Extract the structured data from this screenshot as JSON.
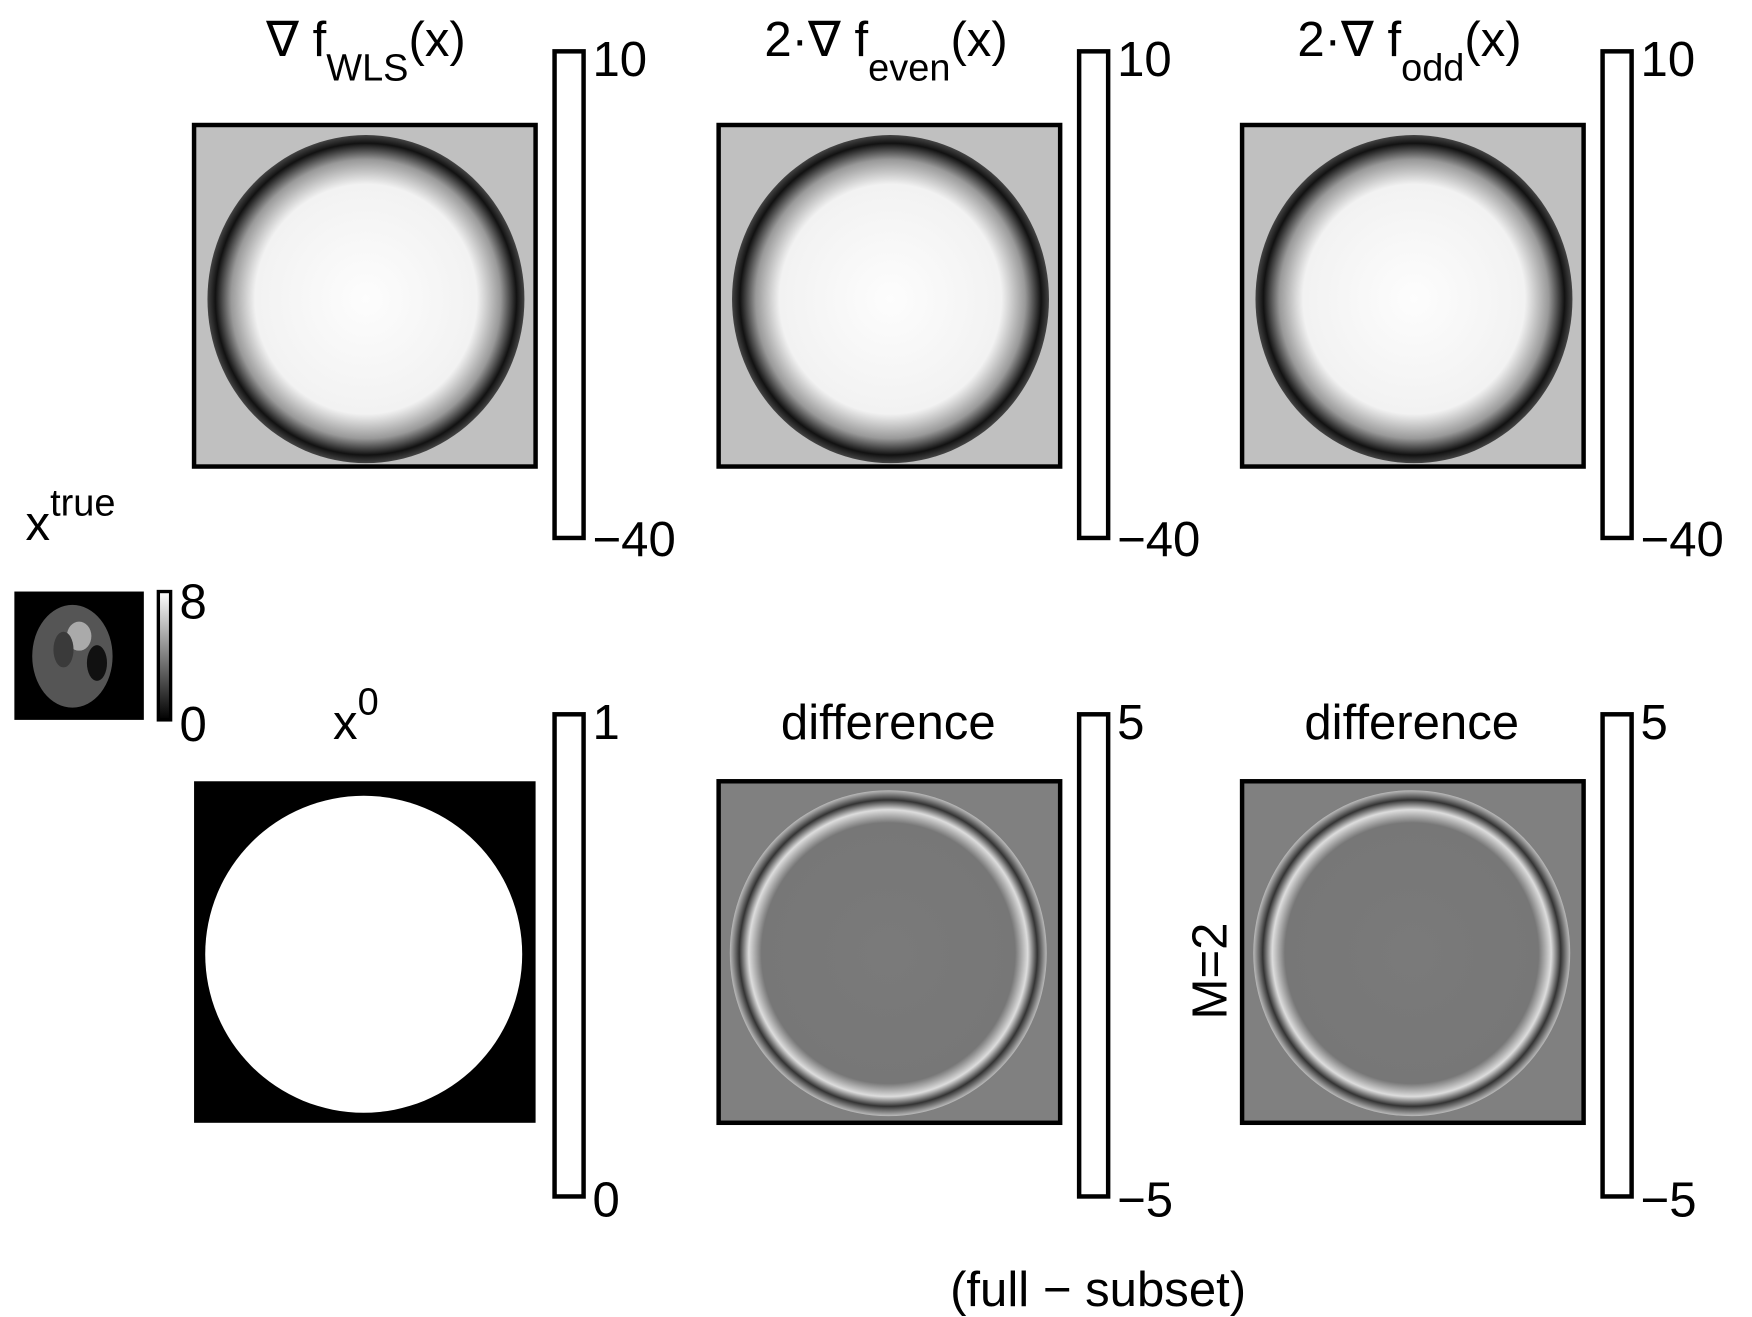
{
  "panels": [
    {
      "title": {
        "main": "∇ f",
        "sub": "WLS",
        "tail": "(x)"
      },
      "colorbar": {
        "max": "10",
        "min": "−40"
      }
    },
    {
      "title": {
        "main": "2·∇ f",
        "sub": "even",
        "tail": "(x)"
      },
      "colorbar": {
        "max": "10",
        "min": "−40"
      }
    },
    {
      "title": {
        "main": "2·∇ f",
        "sub": "odd",
        "tail": "(x)"
      },
      "colorbar": {
        "max": "10",
        "min": "−40"
      }
    },
    {
      "title": {
        "main": "x",
        "sup": "true"
      },
      "colorbar": {
        "max": "8",
        "min": "0"
      }
    },
    {
      "title": {
        "main": "x",
        "sup": "0"
      },
      "colorbar": {
        "max": "1",
        "min": "0"
      }
    },
    {
      "title": {
        "main": "difference"
      },
      "colorbar": {
        "max": "5",
        "min": "−5"
      }
    },
    {
      "title": {
        "main": "difference"
      },
      "colorbar": {
        "max": "5",
        "min": "−5"
      }
    }
  ],
  "side_label": "M=2",
  "footnote": "(full − subset)"
}
